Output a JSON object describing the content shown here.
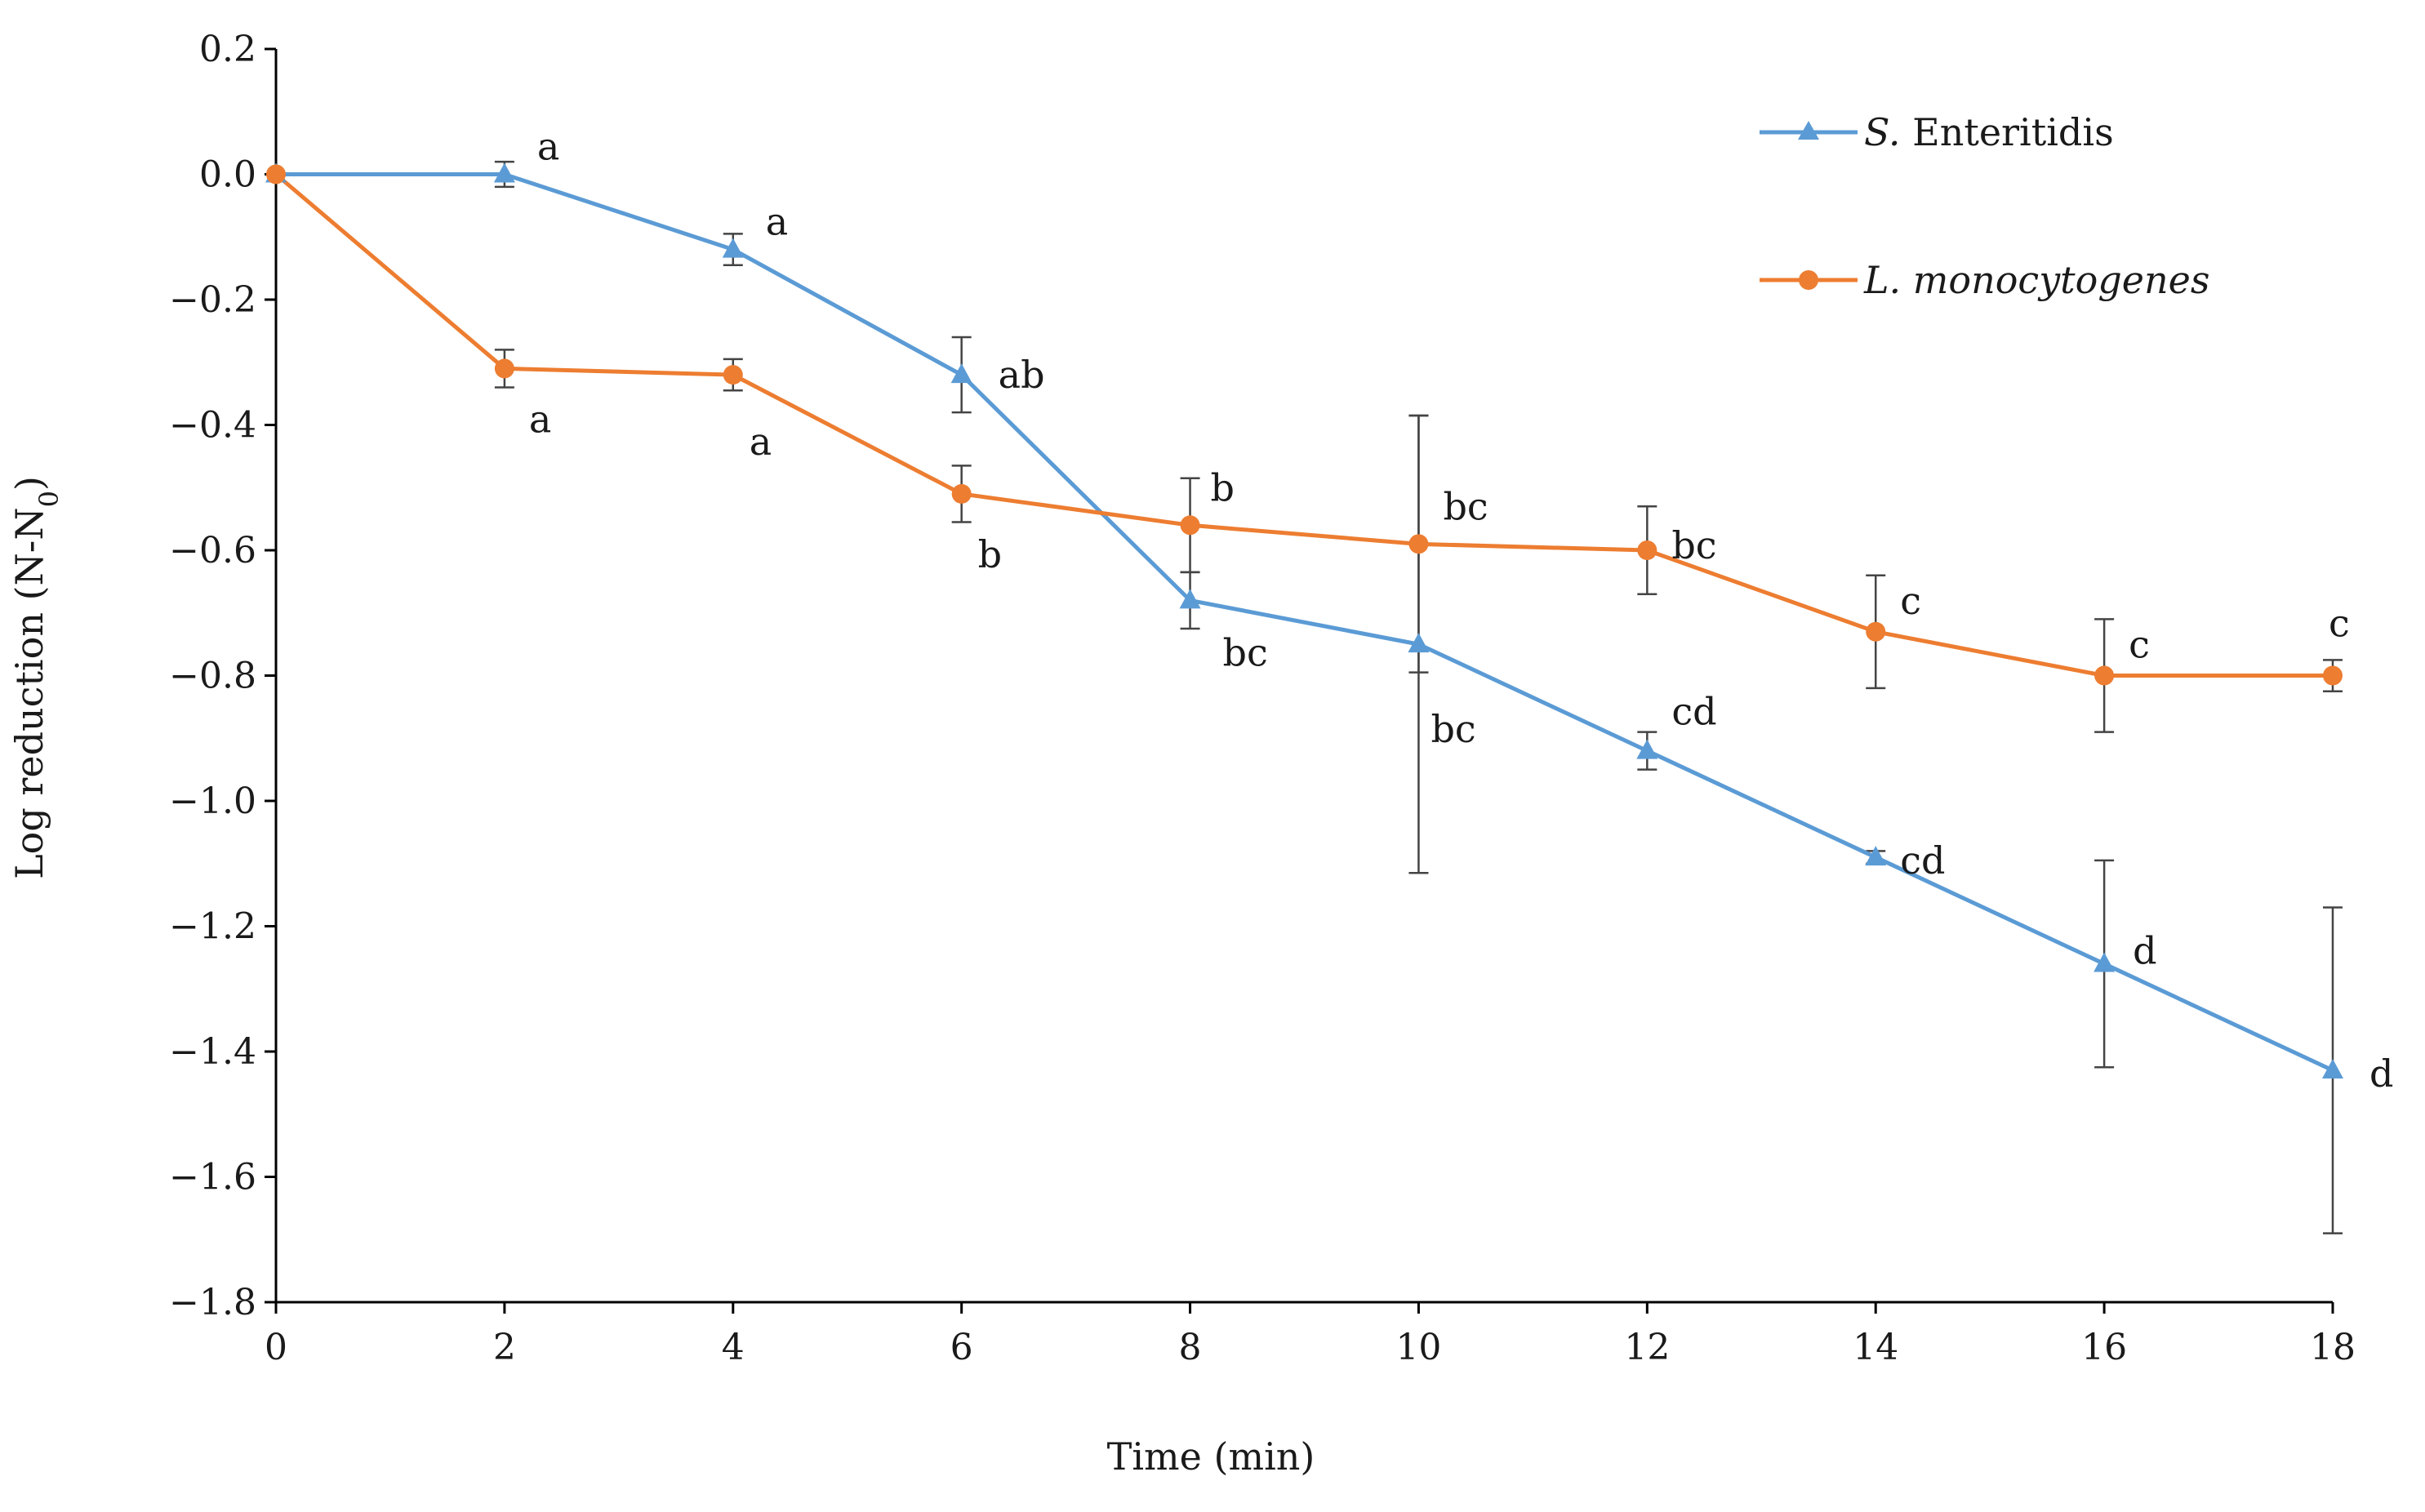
{
  "chart_data": {
    "type": "line",
    "xlabel": "Time (min)",
    "ylabel": "Log reduction (N-N",
    "ylabel_sub": "0",
    "ylabel_close": ")",
    "xlim": [
      0,
      18
    ],
    "ylim": [
      -1.8,
      0.2
    ],
    "x_ticks": [
      "0",
      "2",
      "4",
      "6",
      "8",
      "10",
      "12",
      "14",
      "16",
      "18"
    ],
    "y_ticks": [
      "0.2",
      "0.0",
      "−0.2",
      "−0.4",
      "−0.6",
      "−0.8",
      "−1.0",
      "−1.2",
      "−1.4",
      "−1.6",
      "−1.8"
    ],
    "grid": false,
    "legend_position": "top-right",
    "series": [
      {
        "name_italic": "S.",
        "name_rest": " Enteritidis",
        "color": "#5b9bd5",
        "marker": "triangle",
        "x": [
          0,
          2,
          4,
          6,
          8,
          10,
          12,
          14,
          16,
          18
        ],
        "y": [
          0.0,
          0.0,
          -0.12,
          -0.32,
          -0.68,
          -0.75,
          -0.92,
          -1.09,
          -1.26,
          -1.43
        ],
        "err": [
          0,
          0.02,
          0.025,
          0.06,
          0.045,
          0.365,
          0.03,
          0.01,
          0.165,
          0.26
        ],
        "labels": [
          "",
          "a",
          "a",
          "ab",
          "bc",
          "bc",
          "cd",
          "cd",
          "d",
          "d"
        ]
      },
      {
        "name_italic": "L. monocytogenes",
        "name_rest": "",
        "color": "#ed7d31",
        "marker": "circle",
        "x": [
          0,
          2,
          4,
          6,
          8,
          10,
          12,
          14,
          16,
          18
        ],
        "y": [
          0.0,
          -0.31,
          -0.32,
          -0.51,
          -0.56,
          -0.59,
          -0.6,
          -0.73,
          -0.8,
          -0.8
        ],
        "err": [
          0,
          0.03,
          0.025,
          0.045,
          0.075,
          0.205,
          0.07,
          0.09,
          0.09,
          0.025
        ],
        "labels": [
          "",
          "a",
          "a",
          "b",
          "b",
          "bc",
          "bc",
          "c",
          "c",
          "c"
        ]
      }
    ]
  }
}
